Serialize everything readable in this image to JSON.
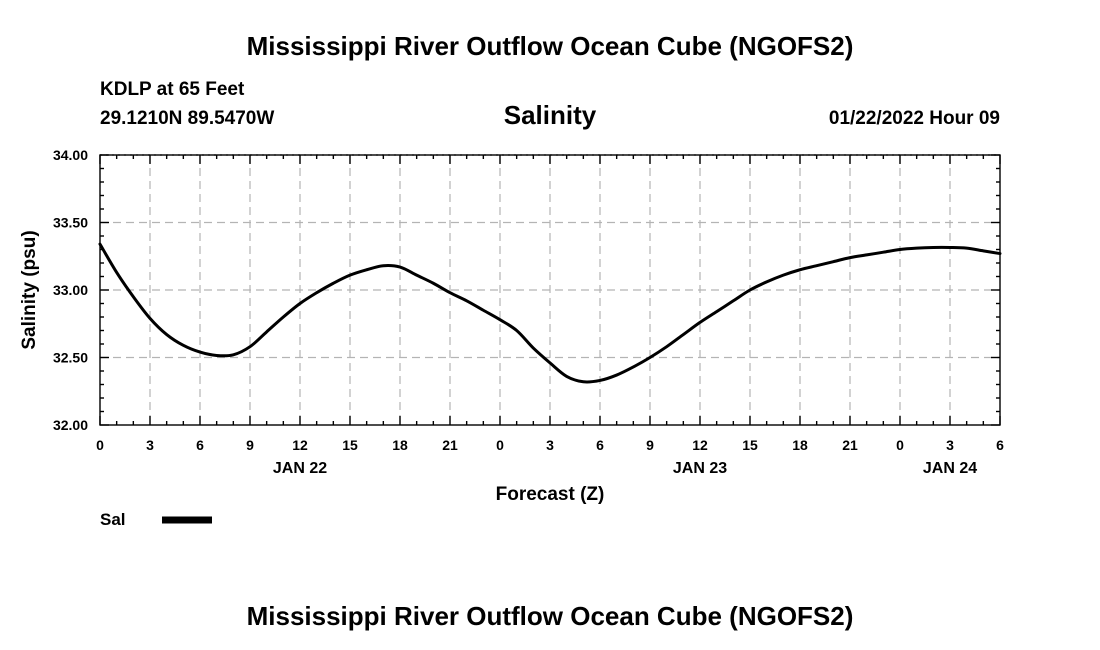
{
  "header": {
    "title_top": "Mississippi River Outflow Ocean Cube (NGOFS2)",
    "title_bottom": "Mississippi River Outflow Ocean Cube (NGOFS2)",
    "station_line": "KDLP at 65 Feet",
    "coords_line": "29.1210N  89.5470W",
    "variable": "Salinity",
    "datetime": "01/22/2022 Hour 09"
  },
  "legend": {
    "label": "Sal"
  },
  "chart_data": {
    "type": "line",
    "title": "Salinity",
    "xlabel": "Forecast (Z)",
    "ylabel": "Salinity (psu)",
    "xlim": [
      0,
      54
    ],
    "ylim": [
      32.0,
      34.0
    ],
    "x_tick_values": [
      0,
      3,
      6,
      9,
      12,
      15,
      18,
      21,
      24,
      27,
      30,
      33,
      36,
      39,
      42,
      45,
      48,
      51,
      54
    ],
    "x_tick_labels": [
      "0",
      "3",
      "6",
      "9",
      "12",
      "15",
      "18",
      "21",
      "0",
      "3",
      "6",
      "9",
      "12",
      "15",
      "18",
      "21",
      "0",
      "3",
      "6"
    ],
    "y_ticks": [
      32.0,
      32.5,
      33.0,
      33.5,
      34.0
    ],
    "y_tick_labels": [
      "32.00",
      "32.50",
      "33.00",
      "33.50",
      "34.00"
    ],
    "date_labels": [
      {
        "x": 12,
        "label": "JAN 22"
      },
      {
        "x": 36,
        "label": "JAN 23"
      },
      {
        "x": 51,
        "label": "JAN 24"
      }
    ],
    "grid": true,
    "series": [
      {
        "name": "Sal",
        "x": [
          0,
          1,
          2,
          3,
          4,
          5,
          6,
          7,
          8,
          9,
          10,
          11,
          12,
          13,
          14,
          15,
          16,
          17,
          18,
          19,
          20,
          21,
          22,
          23,
          24,
          25,
          26,
          27,
          28,
          29,
          30,
          31,
          32,
          33,
          34,
          35,
          36,
          37,
          38,
          39,
          40,
          41,
          42,
          43,
          44,
          45,
          46,
          47,
          48,
          49,
          50,
          51,
          52,
          53,
          54
        ],
        "values": [
          33.34,
          33.13,
          32.95,
          32.79,
          32.67,
          32.59,
          32.54,
          32.515,
          32.52,
          32.58,
          32.69,
          32.8,
          32.9,
          32.98,
          33.05,
          33.11,
          33.15,
          33.18,
          33.17,
          33.11,
          33.05,
          32.98,
          32.92,
          32.85,
          32.78,
          32.7,
          32.57,
          32.46,
          32.36,
          32.32,
          32.33,
          32.37,
          32.43,
          32.5,
          32.58,
          32.67,
          32.76,
          32.84,
          32.92,
          33.0,
          33.06,
          33.11,
          33.15,
          33.18,
          33.21,
          33.24,
          33.26,
          33.28,
          33.3,
          33.31,
          33.315,
          33.315,
          33.31,
          33.29,
          33.27
        ]
      }
    ]
  }
}
